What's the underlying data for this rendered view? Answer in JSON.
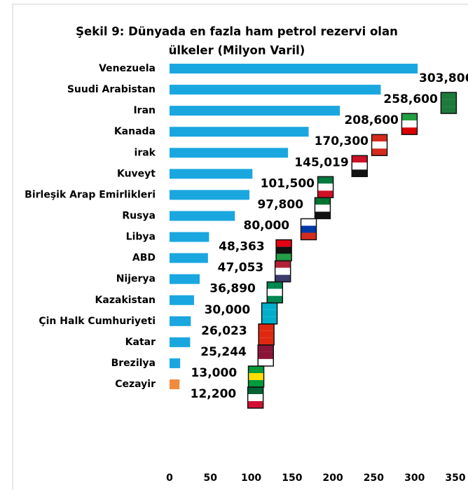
{
  "chart_data": {
    "type": "bar",
    "orientation": "horizontal",
    "title": [
      "Şekil 9: Dünyada en fazla ham petrol rezervi olan",
      "ülkeler (Milyon Varil)"
    ],
    "categories": [
      "Venezuela",
      "Suudi Arabistan",
      "Iran",
      "Kanada",
      "irak",
      "Kuveyt",
      "Birleşik Arap Emirlikleri",
      "Rusya",
      "Libya",
      "ABD",
      "Nijerya",
      "Kazakistan",
      "Çin Halk Cumhuriyeti",
      "Katar",
      "Brezilya",
      "Cezayir"
    ],
    "values": [
      303.806,
      258.6,
      208.6,
      170.3,
      145.019,
      101.5,
      97.8,
      80.0,
      48.363,
      47.053,
      36.89,
      30.0,
      26.023,
      25.244,
      13.0,
      12.2
    ],
    "value_labels": [
      "303,806",
      "258,600",
      "208,600",
      "170,300",
      "145,019",
      "101,500",
      "97,800",
      "80,000",
      "48,363",
      "47,053",
      "36,890",
      "30,000",
      "26,023",
      "25,244",
      "13,000",
      "12,200"
    ],
    "colors": [
      "#1aa7e0",
      "#1aa7e0",
      "#1aa7e0",
      "#1aa7e0",
      "#1aa7e0",
      "#1aa7e0",
      "#1aa7e0",
      "#1aa7e0",
      "#1aa7e0",
      "#1aa7e0",
      "#1aa7e0",
      "#1aa7e0",
      "#1aa7e0",
      "#1aa7e0",
      "#1aa7e0",
      "#f08a3c"
    ],
    "xlim": [
      0,
      350
    ],
    "xticks": [
      0,
      50,
      100,
      150,
      200,
      250,
      300,
      350
    ],
    "grid": false
  }
}
